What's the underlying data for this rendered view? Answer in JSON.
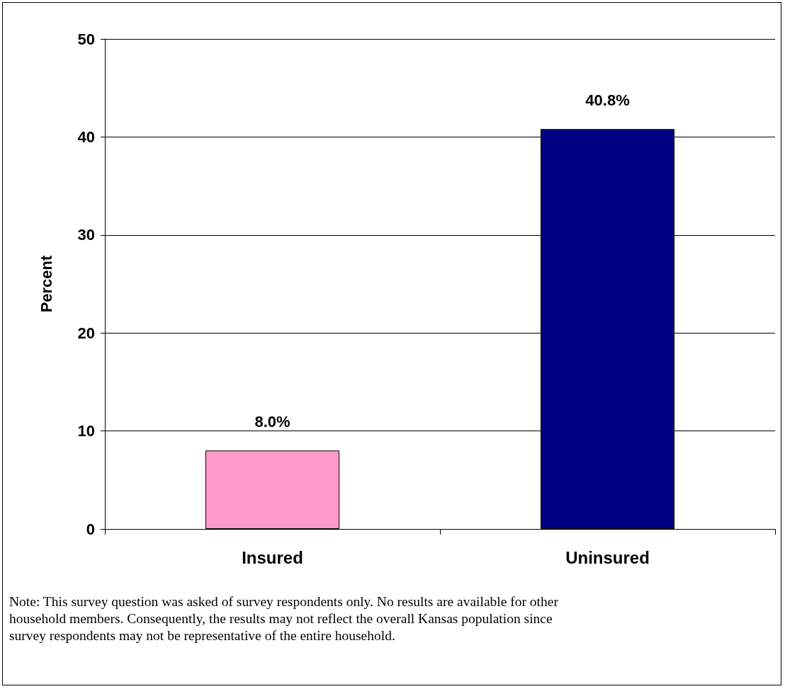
{
  "chart_data": {
    "type": "bar",
    "ylabel": "Percent",
    "categories": [
      "Insured",
      "Uninsured"
    ],
    "values": [
      8.0,
      40.8
    ],
    "colors": [
      "#ff99cc",
      "#000080"
    ],
    "value_labels": [
      "8.0%",
      "40.8%"
    ],
    "ylim": [
      0,
      50
    ],
    "yticks": [
      0,
      10,
      20,
      30,
      40,
      50
    ],
    "grid": "y",
    "annotations": [
      "Note: This survey question was asked of survey respondents only.  No results are available for other household members.  Consequently, the results may not reflect the overall Kansas population since survey respondents may not be representative of the entire household."
    ]
  }
}
